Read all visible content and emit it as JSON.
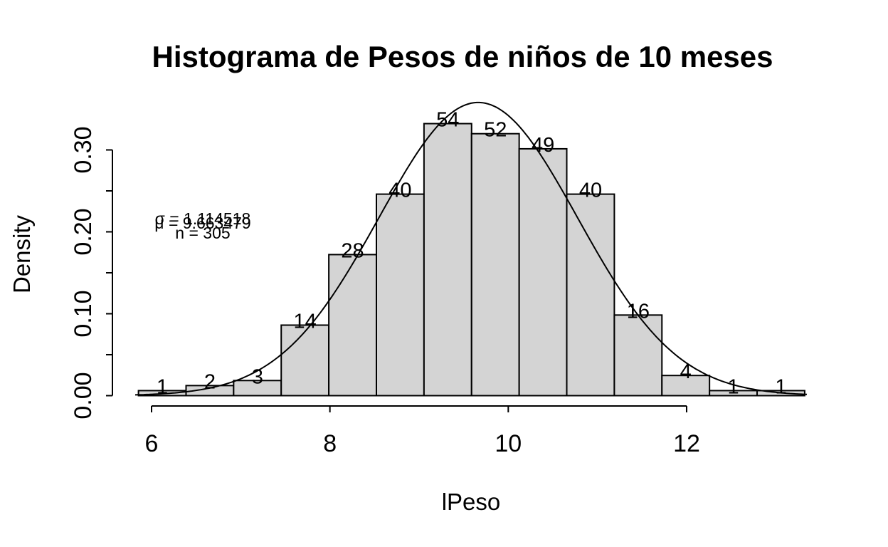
{
  "chart_data": {
    "type": "bar",
    "subtype": "histogram-with-normal-curve",
    "title": "Histograma de Pesos de niños de 10 meses",
    "xlabel": "lPeso",
    "ylabel": "Density",
    "x_tick_values": [
      6,
      8,
      10,
      12
    ],
    "x_tick_labels": [
      "6",
      "8",
      "10",
      "12"
    ],
    "y_tick_values": [
      0,
      0.05,
      0.1,
      0.15,
      0.2,
      0.25,
      0.3
    ],
    "y_tick_labels": [
      "0.00",
      "",
      "0.10",
      "",
      "0.20",
      "",
      "0.30"
    ],
    "ylim": [
      0,
      0.3
    ],
    "bar_counts": [
      1,
      2,
      3,
      14,
      28,
      40,
      54,
      52,
      49,
      40,
      16,
      4,
      1,
      1
    ],
    "bar_labels": [
      "1",
      "2",
      "3",
      "14",
      "28",
      "40",
      "54",
      "52",
      "49",
      "40",
      "16",
      "4",
      "1",
      "1"
    ],
    "bar_densities": [
      0.0066,
      0.0131,
      0.0197,
      0.0918,
      0.1836,
      0.2623,
      0.3541,
      0.341,
      0.3213,
      0.2623,
      0.1049,
      0.0262,
      0.0066,
      0.0066
    ],
    "n": 305,
    "mean": 9.663479,
    "sd": 1.114518,
    "annotations": [
      {
        "text": "σ = 1.114518"
      },
      {
        "text": "μ = 9.663479"
      },
      {
        "text": "n = 305"
      }
    ],
    "overlay_curve": "normal_density",
    "legend": "none",
    "grid": false,
    "colors": {
      "bar_fill": "#d4d4d4",
      "bar_stroke": "#000000",
      "curve": "#000000",
      "text": "#000000",
      "background": "#ffffff"
    }
  }
}
